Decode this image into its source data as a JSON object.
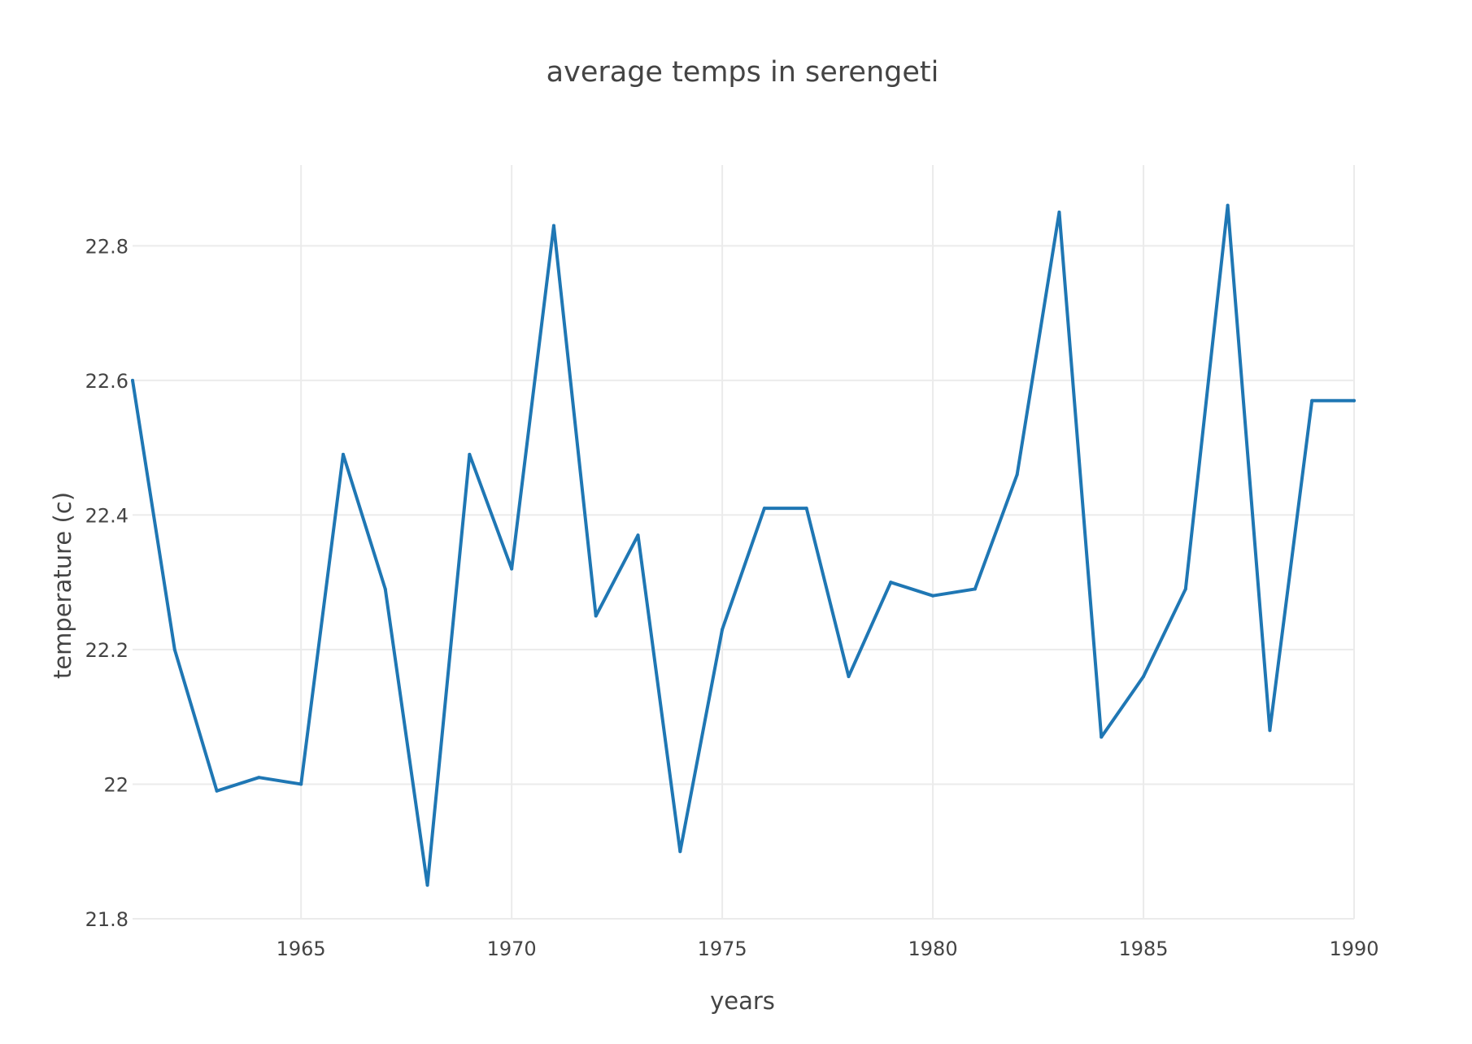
{
  "chart_data": {
    "type": "line",
    "title": "average temps in serengeti",
    "xlabel": "years",
    "ylabel": "temperature (c)",
    "xlim": [
      1961,
      1990
    ],
    "ylim": [
      21.8,
      22.92
    ],
    "grid": true,
    "legend": "none",
    "x_ticks": [
      1965,
      1970,
      1975,
      1980,
      1985,
      1990
    ],
    "x_tick_labels": [
      "1965",
      "1970",
      "1975",
      "1980",
      "1985",
      "1990"
    ],
    "y_ticks": [
      21.8,
      22,
      22.2,
      22.4,
      22.6,
      22.8
    ],
    "y_tick_labels": [
      "21.8",
      "22",
      "22.2",
      "22.4",
      "22.6",
      "22.8"
    ],
    "colors": {
      "line": "#1f77b4",
      "grid": "#ebebeb",
      "text": "#444444"
    },
    "x": [
      1961,
      1962,
      1963,
      1964,
      1965,
      1966,
      1967,
      1968,
      1969,
      1970,
      1971,
      1972,
      1973,
      1974,
      1975,
      1976,
      1977,
      1978,
      1979,
      1980,
      1981,
      1982,
      1983,
      1984,
      1985,
      1986,
      1987,
      1988,
      1989,
      1990
    ],
    "series": [
      {
        "values": [
          22.6,
          22.2,
          21.99,
          22.01,
          22.0,
          22.49,
          22.29,
          21.85,
          22.49,
          22.32,
          22.83,
          22.25,
          22.37,
          21.9,
          22.23,
          22.41,
          22.41,
          22.16,
          22.3,
          22.28,
          22.29,
          22.46,
          22.85,
          22.07,
          22.16,
          22.29,
          22.86,
          22.08,
          22.57,
          22.57
        ]
      }
    ]
  }
}
